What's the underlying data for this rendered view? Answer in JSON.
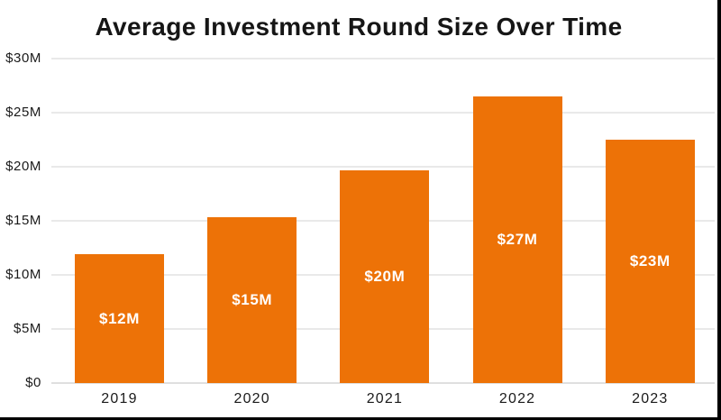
{
  "title": "Average Investment Round Size Over Time",
  "colors": {
    "background": "#FFFFFF",
    "bar": "#ED7207",
    "gridline": "#E9E9E9",
    "axis_line": "#DFDFDF",
    "text": "#1A1A1A",
    "bar_label_text": "#FFFFFF",
    "edge_border": "#000000"
  },
  "chart_data": {
    "type": "bar",
    "title": "Average Investment Round Size Over Time",
    "categories": [
      "2019",
      "2020",
      "2021",
      "2022",
      "2023"
    ],
    "values": [
      12,
      15,
      20,
      27,
      23
    ],
    "bar_labels": [
      "$12M",
      "$15M",
      "$20M",
      "$27M",
      "$23M"
    ],
    "plotted_values_m": [
      11.9,
      15.3,
      19.7,
      26.5,
      22.5
    ],
    "xlabel": "",
    "ylabel": "",
    "ylim": [
      0,
      30
    ],
    "ytick_step_m": 5,
    "ytick_labels_top_to_bottom": [
      "$30M",
      "$25M",
      "$20M",
      "$15M",
      "$10M",
      "$5M",
      "$0"
    ],
    "grid": true,
    "legend": false,
    "bar_color": "#ED7207",
    "bar_label_color": "#FFFFFF"
  }
}
